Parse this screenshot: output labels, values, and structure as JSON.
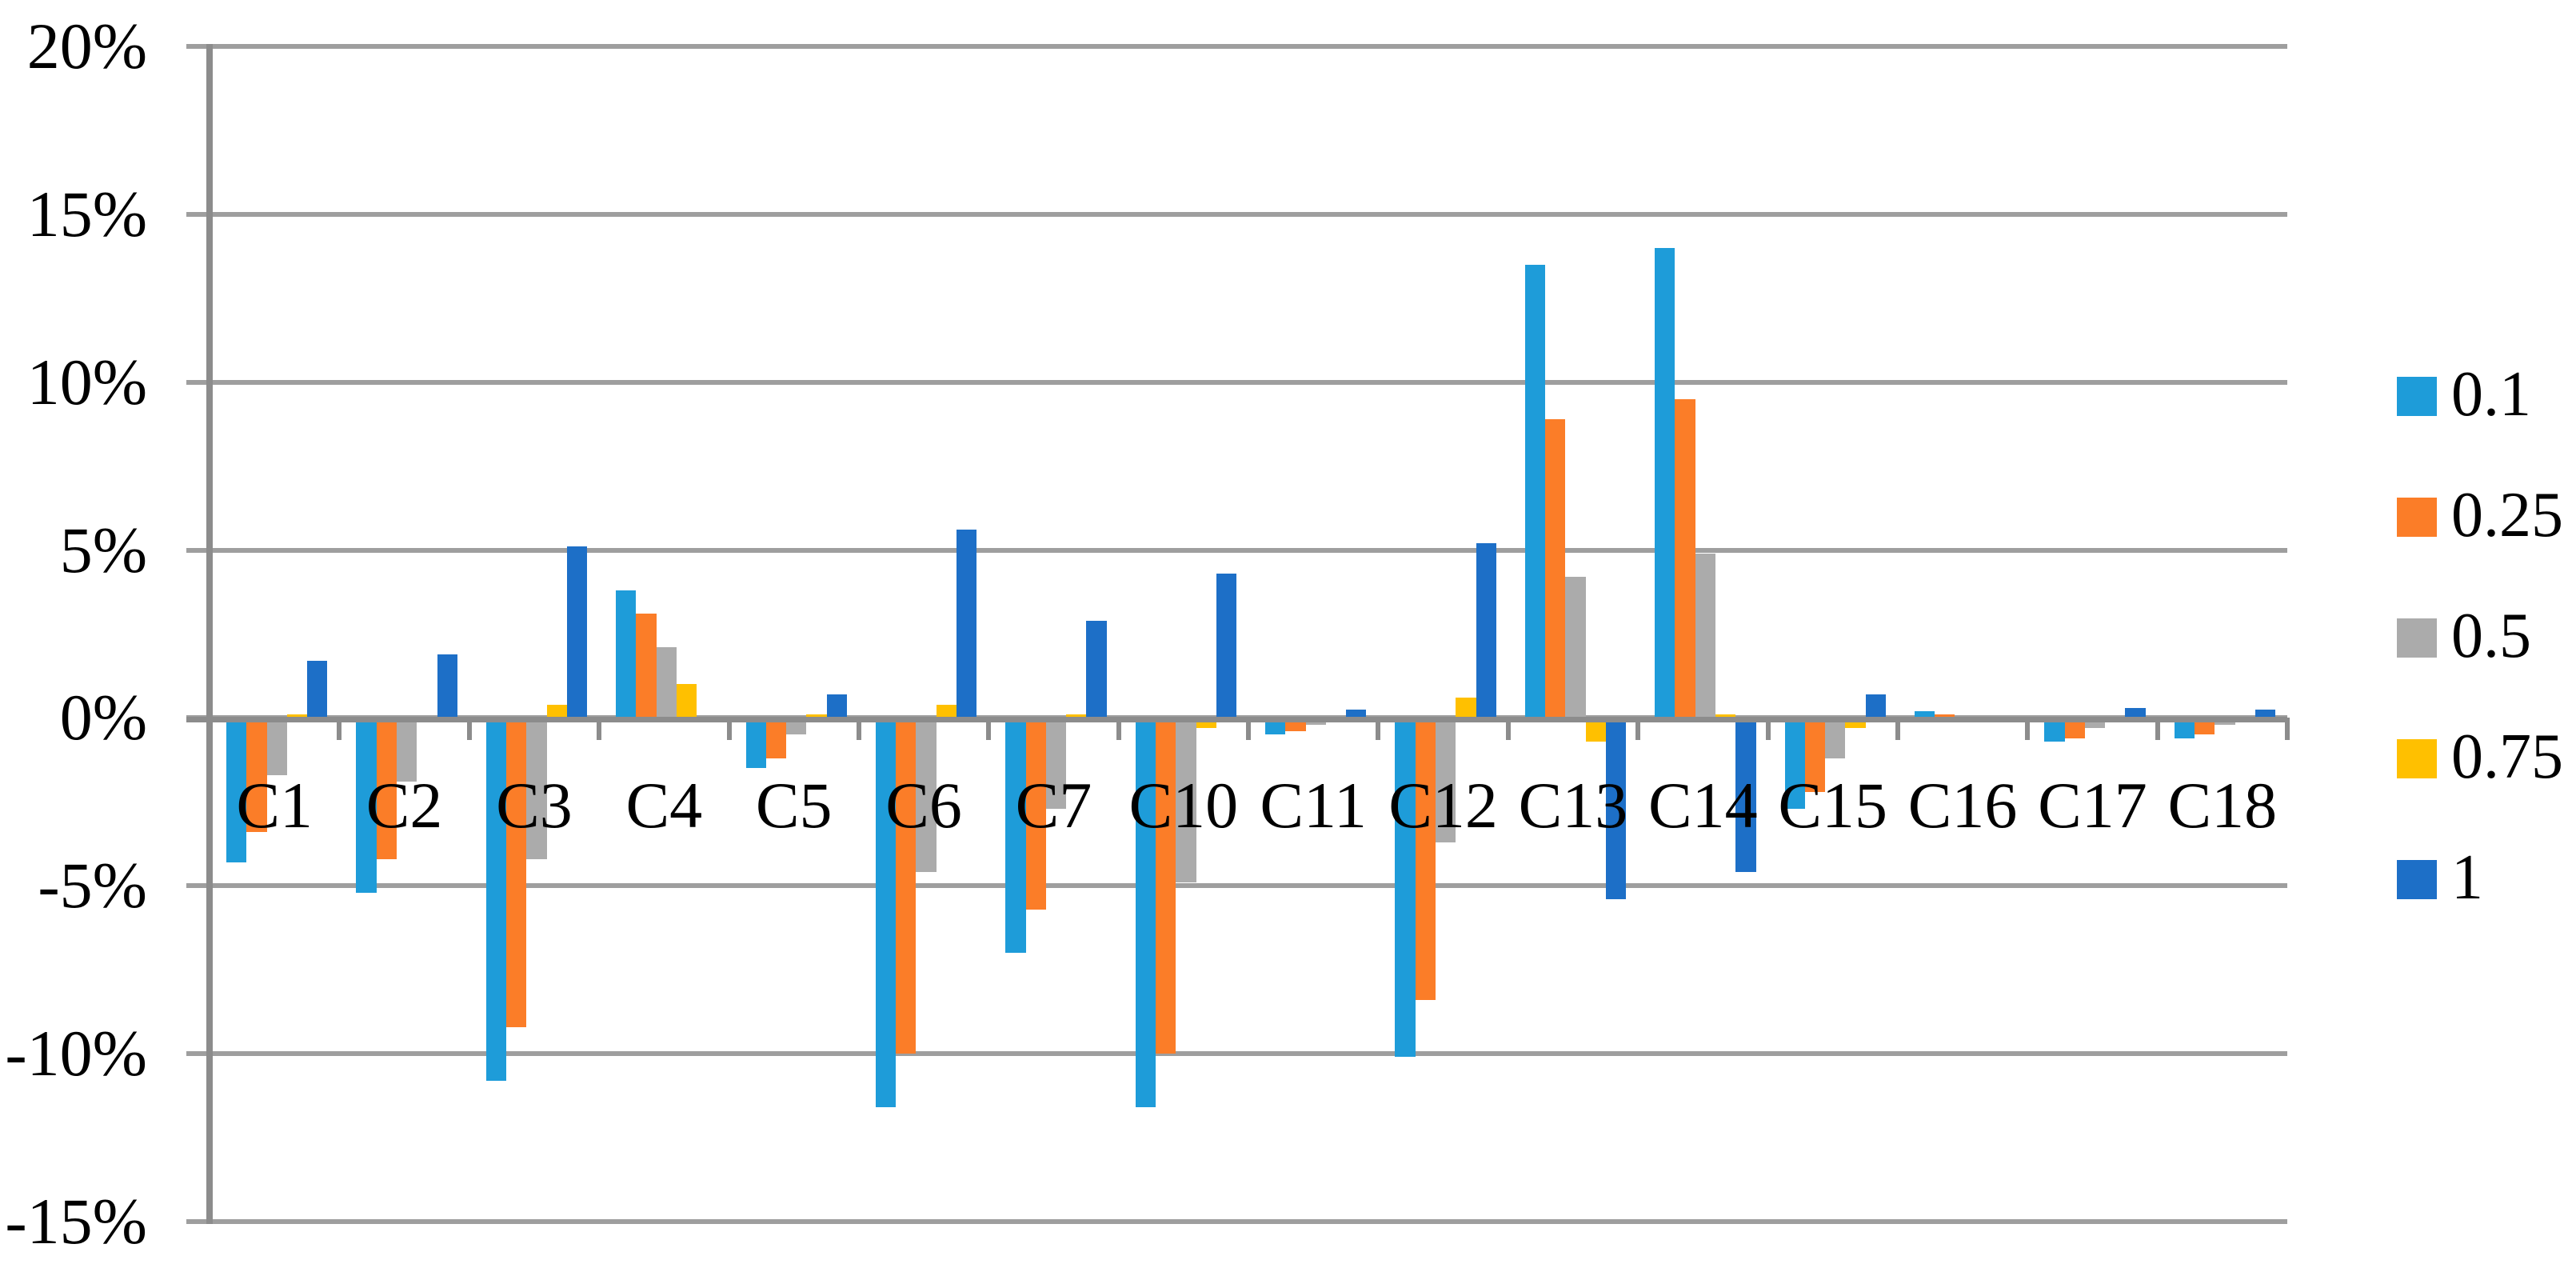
{
  "figure": {
    "title": "",
    "background": "#ffffff",
    "gridline_color": "#9e9e9e",
    "axis_color": "#8c8c8c",
    "text_color": "#000000"
  },
  "chart_data": {
    "type": "bar",
    "title": "",
    "xlabel": "",
    "ylabel": "",
    "ylim": [
      -15,
      20
    ],
    "ytick_step": 5,
    "grid": true,
    "legend_position": "right",
    "yticks": [
      20,
      15,
      10,
      5,
      0,
      -5,
      -10,
      -15
    ],
    "ytick_labels": [
      "20%",
      "15%",
      "10%",
      "5%",
      "0%",
      "-5%",
      "-10%",
      "-15%"
    ],
    "categories": [
      "C1",
      "C2",
      "C3",
      "C4",
      "C5",
      "C6",
      "C7",
      "C10",
      "C11",
      "C12",
      "C13",
      "C14",
      "C15",
      "C16",
      "C17",
      "C18"
    ],
    "series": [
      {
        "name": "0.1",
        "color": "#1e9cd9",
        "values": [
          -4.3,
          -5.2,
          -10.8,
          3.8,
          -1.5,
          -11.6,
          -7.0,
          -11.6,
          -0.5,
          -10.1,
          13.5,
          14.0,
          -2.7,
          0.2,
          -0.7,
          -0.6
        ]
      },
      {
        "name": "0.25",
        "color": "#fb7d28",
        "values": [
          -3.4,
          -4.2,
          -9.2,
          3.1,
          -1.2,
          -10.0,
          -5.7,
          -10.0,
          -0.4,
          -8.4,
          8.9,
          9.5,
          -2.2,
          0.1,
          -0.6,
          -0.5
        ]
      },
      {
        "name": "0.5",
        "color": "#ababab",
        "values": [
          -1.7,
          -1.9,
          -4.2,
          2.1,
          -0.5,
          -4.6,
          -2.7,
          -4.9,
          -0.2,
          -3.7,
          4.2,
          4.9,
          -1.2,
          0.0,
          -0.3,
          -0.2
        ]
      },
      {
        "name": "0.75",
        "color": "#ffc000",
        "values": [
          0.1,
          -0.1,
          0.4,
          1.0,
          0.1,
          0.4,
          0.1,
          -0.3,
          0.0,
          0.6,
          -0.7,
          0.1,
          -0.3,
          0.0,
          0.0,
          0.0
        ]
      },
      {
        "name": "1",
        "color": "#1d6fc7",
        "values": [
          1.7,
          1.9,
          5.1,
          0.0,
          0.7,
          5.6,
          2.9,
          4.3,
          0.25,
          5.2,
          -5.4,
          -4.6,
          0.7,
          -0.1,
          0.3,
          0.25
        ]
      }
    ]
  }
}
